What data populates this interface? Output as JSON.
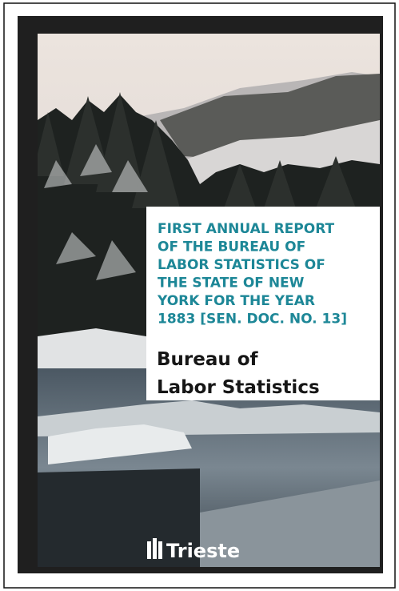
{
  "cover": {
    "title_lines": [
      "FIRST ANNUAL REPORT",
      "OF THE BUREAU OF",
      "LABOR STATISTICS OF",
      "THE STATE OF NEW",
      "YORK FOR THE YEAR",
      "1883 [SEN. DOC. NO. 13]"
    ],
    "author_lines": [
      "Bureau of",
      "Labor Statistics"
    ],
    "publisher": "Trieste"
  }
}
